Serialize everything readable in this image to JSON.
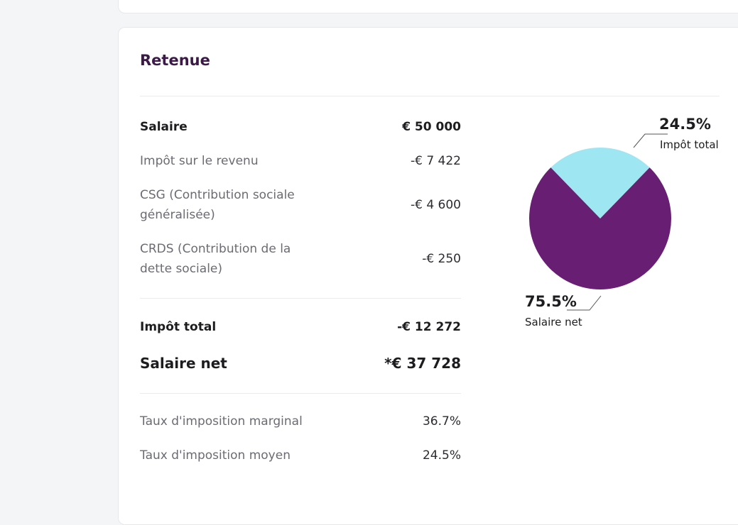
{
  "section": {
    "title": "Retenue"
  },
  "rows": [
    {
      "label": "Salaire",
      "value": "€ 50 000"
    },
    {
      "label": "Impôt sur le revenu",
      "value": "-€ 7 422"
    },
    {
      "label": "CSG (Contribution sociale généralisée)",
      "value": "-€ 4 600"
    },
    {
      "label": "CRDS (Contribution de la dette sociale)",
      "value": "-€ 250"
    }
  ],
  "totals": [
    {
      "label": "Impôt total",
      "value": "-€ 12 272"
    },
    {
      "label": "Salaire net",
      "value": "*€ 37 728"
    }
  ],
  "rates": [
    {
      "label": "Taux d'imposition marginal",
      "value": "36.7%"
    },
    {
      "label": "Taux d'imposition moyen",
      "value": "24.5%"
    }
  ],
  "chart_data": {
    "type": "pie",
    "slices": [
      {
        "label": "Impôt total",
        "percent_text": "24.5%",
        "value": 24.5,
        "color": "#9fe6f3"
      },
      {
        "label": "Salaire net",
        "percent_text": "75.5%",
        "value": 75.5,
        "color": "#681e72"
      }
    ]
  }
}
